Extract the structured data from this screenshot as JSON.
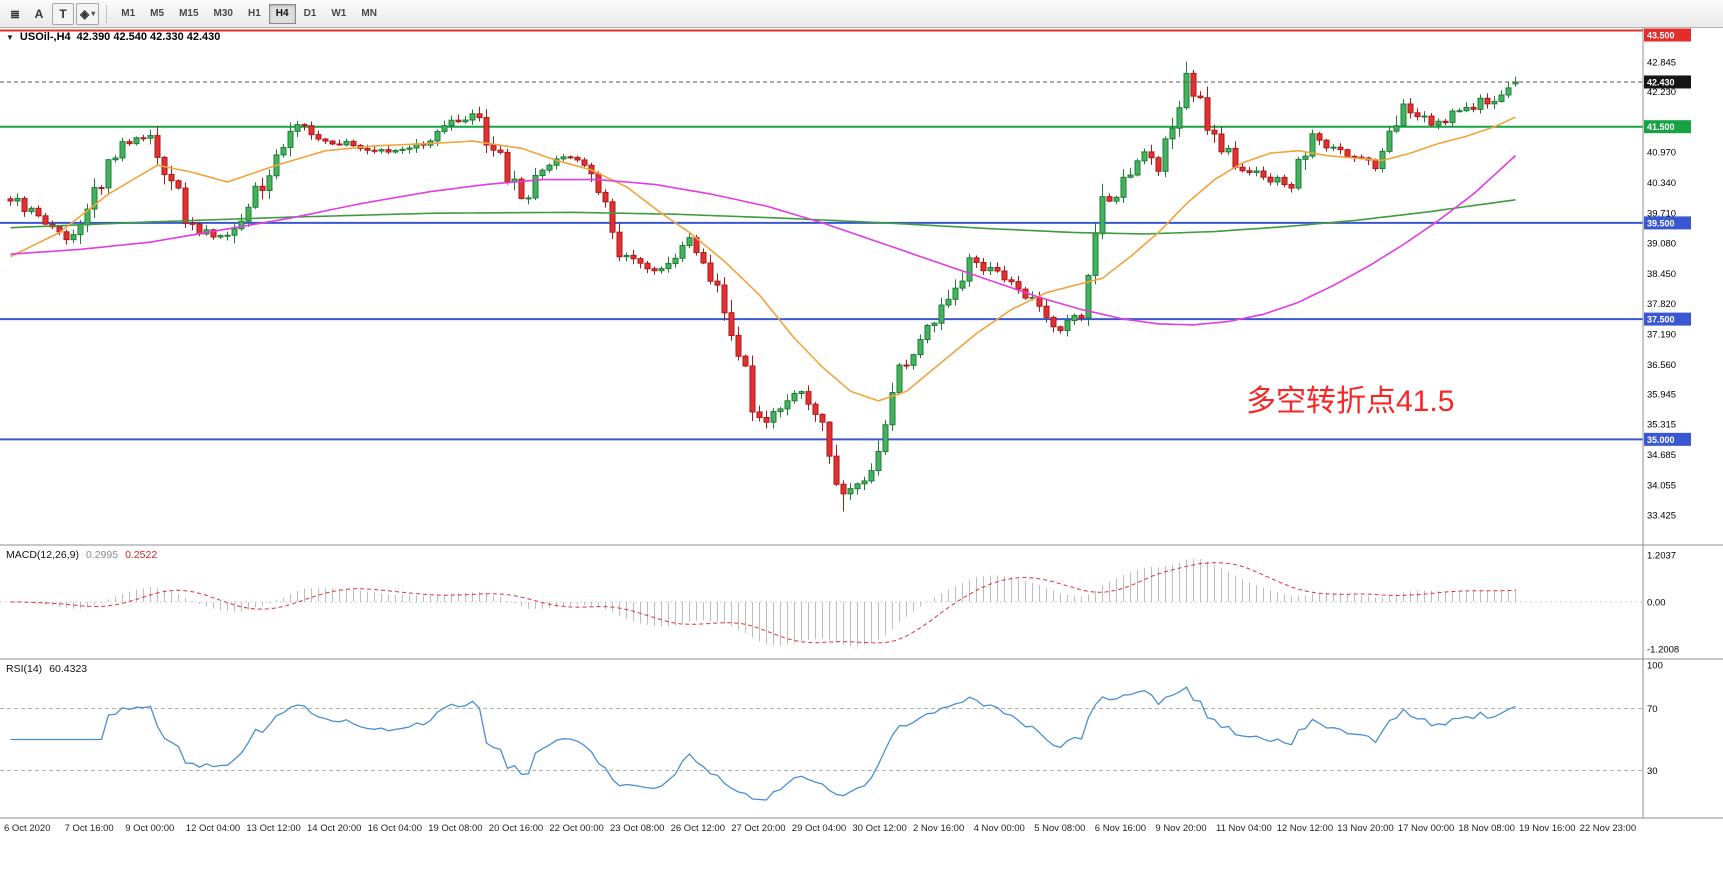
{
  "toolbar": {
    "tools": [
      {
        "name": "indicator-list-icon",
        "glyph": "≣",
        "boxed": false
      },
      {
        "name": "text-tool-icon",
        "glyph": "A",
        "boxed": false
      },
      {
        "name": "label-tool-icon",
        "glyph": "T",
        "boxed": true
      },
      {
        "name": "shapes-tool-icon",
        "glyph": "◈",
        "caret": "▾",
        "boxed": true
      }
    ],
    "timeframes": [
      "M1",
      "M5",
      "M15",
      "M30",
      "H1",
      "H4",
      "D1",
      "W1",
      "MN"
    ],
    "active_timeframe": "H4"
  },
  "header": {
    "dropdown_glyph": "▼",
    "symbol": "USOil-,H4",
    "ohlc": "42.390 42.540 42.330 42.430"
  },
  "panels": {
    "macd": {
      "title": "MACD(12,26,9)",
      "value_main": "0.2995",
      "value_signal": "0.2522"
    },
    "rsi": {
      "title": "RSI(14)",
      "value": "60.4323"
    }
  },
  "chart_data": {
    "type": "candlestick",
    "symbol": "USOil-",
    "timeframe": "H4",
    "quote": {
      "open": 42.39,
      "high": 42.54,
      "low": 42.33,
      "close": 42.43
    },
    "candles": 216,
    "annotation": {
      "text": "多空转折点41.5",
      "color": "#f92525"
    },
    "current_price": {
      "value": 42.43,
      "label": "42.430",
      "badge_color": "#161616"
    },
    "hlines": [
      {
        "price": 43.5,
        "label": "43.500",
        "color": "#e22d2d"
      },
      {
        "price": 41.5,
        "label": "41.500",
        "color": "#17a343"
      },
      {
        "price": 39.5,
        "label": "39.500",
        "color": "#3a57d2"
      },
      {
        "price": 37.5,
        "label": "37.500",
        "color": "#3a57d2"
      },
      {
        "price": 35.0,
        "label": "35.000",
        "color": "#3a57d2"
      }
    ],
    "y_ticks": [
      "42.845",
      "42.230",
      "40.970",
      "40.340",
      "39.710",
      "39.080",
      "38.450",
      "37.820",
      "37.190",
      "36.560",
      "35.945",
      "35.315",
      "34.685",
      "34.055",
      "33.425"
    ],
    "price_anchors": [
      [
        0,
        40.0
      ],
      [
        3,
        39.7
      ],
      [
        8,
        39.15
      ],
      [
        16,
        41.15
      ],
      [
        20,
        41.3
      ],
      [
        26,
        39.35
      ],
      [
        31,
        39.2
      ],
      [
        41,
        41.5
      ],
      [
        47,
        41.15
      ],
      [
        56,
        40.95
      ],
      [
        66,
        41.8
      ],
      [
        73,
        40.0
      ],
      [
        78,
        40.85
      ],
      [
        83,
        40.7
      ],
      [
        87,
        38.95
      ],
      [
        93,
        38.5
      ],
      [
        97,
        39.1
      ],
      [
        102,
        37.8
      ],
      [
        107,
        35.35
      ],
      [
        112,
        36.0
      ],
      [
        115,
        35.6
      ],
      [
        119,
        33.8
      ],
      [
        123,
        34.3
      ],
      [
        127,
        36.4
      ],
      [
        132,
        37.4
      ],
      [
        137,
        38.7
      ],
      [
        142,
        38.35
      ],
      [
        147,
        37.8
      ],
      [
        150,
        37.3
      ],
      [
        153,
        37.6
      ],
      [
        156,
        39.8
      ],
      [
        159,
        40.3
      ],
      [
        162,
        41.0
      ],
      [
        164,
        40.45
      ],
      [
        168,
        42.6
      ],
      [
        172,
        41.3
      ],
      [
        176,
        40.6
      ],
      [
        179,
        40.45
      ],
      [
        183,
        40.3
      ],
      [
        186,
        41.25
      ],
      [
        191,
        40.9
      ],
      [
        195,
        40.7
      ],
      [
        199,
        41.9
      ],
      [
        203,
        41.55
      ],
      [
        208,
        41.9
      ],
      [
        212,
        42.1
      ],
      [
        215,
        42.43
      ]
    ],
    "ma_orange": [
      [
        0,
        38.8
      ],
      [
        7,
        39.3
      ],
      [
        14,
        40.1
      ],
      [
        21,
        40.7
      ],
      [
        26,
        40.55
      ],
      [
        31,
        40.35
      ],
      [
        38,
        40.7
      ],
      [
        45,
        41.0
      ],
      [
        52,
        41.1
      ],
      [
        60,
        41.15
      ],
      [
        66,
        41.2
      ],
      [
        73,
        41.05
      ],
      [
        78,
        40.8
      ],
      [
        83,
        40.6
      ],
      [
        88,
        40.25
      ],
      [
        93,
        39.7
      ],
      [
        97,
        39.3
      ],
      [
        102,
        38.7
      ],
      [
        107,
        38.0
      ],
      [
        112,
        37.1
      ],
      [
        116,
        36.5
      ],
      [
        120,
        36.0
      ],
      [
        124,
        35.8
      ],
      [
        128,
        36.0
      ],
      [
        133,
        36.6
      ],
      [
        138,
        37.2
      ],
      [
        143,
        37.7
      ],
      [
        148,
        38.05
      ],
      [
        152,
        38.2
      ],
      [
        156,
        38.35
      ],
      [
        160,
        38.8
      ],
      [
        164,
        39.3
      ],
      [
        168,
        39.9
      ],
      [
        172,
        40.4
      ],
      [
        176,
        40.75
      ],
      [
        180,
        40.95
      ],
      [
        184,
        41.0
      ],
      [
        188,
        40.9
      ],
      [
        192,
        40.85
      ],
      [
        196,
        40.8
      ],
      [
        200,
        40.95
      ],
      [
        204,
        41.15
      ],
      [
        208,
        41.3
      ],
      [
        212,
        41.5
      ],
      [
        215,
        41.7
      ]
    ],
    "ma_magenta": [
      [
        0,
        38.85
      ],
      [
        10,
        38.95
      ],
      [
        20,
        39.1
      ],
      [
        30,
        39.35
      ],
      [
        40,
        39.6
      ],
      [
        50,
        39.9
      ],
      [
        60,
        40.15
      ],
      [
        68,
        40.3
      ],
      [
        76,
        40.4
      ],
      [
        84,
        40.4
      ],
      [
        92,
        40.3
      ],
      [
        100,
        40.1
      ],
      [
        108,
        39.85
      ],
      [
        116,
        39.5
      ],
      [
        124,
        39.1
      ],
      [
        132,
        38.7
      ],
      [
        140,
        38.3
      ],
      [
        147,
        37.95
      ],
      [
        153,
        37.7
      ],
      [
        159,
        37.5
      ],
      [
        164,
        37.4
      ],
      [
        169,
        37.38
      ],
      [
        174,
        37.45
      ],
      [
        179,
        37.6
      ],
      [
        184,
        37.85
      ],
      [
        189,
        38.2
      ],
      [
        194,
        38.6
      ],
      [
        199,
        39.05
      ],
      [
        204,
        39.55
      ],
      [
        209,
        40.1
      ],
      [
        212,
        40.5
      ],
      [
        215,
        40.9
      ]
    ],
    "ma_green": [
      [
        0,
        39.4
      ],
      [
        20,
        39.52
      ],
      [
        40,
        39.62
      ],
      [
        60,
        39.7
      ],
      [
        80,
        39.72
      ],
      [
        95,
        39.68
      ],
      [
        110,
        39.6
      ],
      [
        125,
        39.5
      ],
      [
        140,
        39.38
      ],
      [
        152,
        39.3
      ],
      [
        162,
        39.27
      ],
      [
        172,
        39.32
      ],
      [
        182,
        39.42
      ],
      [
        192,
        39.55
      ],
      [
        202,
        39.72
      ],
      [
        210,
        39.88
      ],
      [
        215,
        39.98
      ]
    ],
    "indicators": [
      {
        "type": "macd",
        "title": "MACD(12,26,9)",
        "main": 0.2995,
        "signal": 0.2522,
        "scale_ticks": [
          {
            "label": "1.2037",
            "value": 1.2037
          },
          {
            "label": "0.00",
            "value": 0
          },
          {
            "label": "-1.2008",
            "value": -1.2008
          }
        ]
      },
      {
        "type": "rsi",
        "title": "RSI(14)",
        "value": 60.4323,
        "levels": [
          70,
          30
        ],
        "scale_ticks": [
          {
            "label": "100",
            "value": 100
          },
          {
            "label": "70",
            "value": 70
          },
          {
            "label": "30",
            "value": 30
          }
        ]
      }
    ],
    "x_labels": [
      "6 Oct 2020",
      "7 Oct 16:00",
      "9 Oct 00:00",
      "12 Oct 04:00",
      "13 Oct 12:00",
      "14 Oct 20:00",
      "16 Oct 04:00",
      "19 Oct 08:00",
      "20 Oct 16:00",
      "22 Oct 00:00",
      "23 Oct 08:00",
      "26 Oct 12:00",
      "27 Oct 20:00",
      "29 Oct 04:00",
      "30 Oct 12:00",
      "2 Nov 16:00",
      "4 Nov 00:00",
      "5 Nov 08:00",
      "6 Nov 16:00",
      "9 Nov 20:00",
      "11 Nov 04:00",
      "12 Nov 12:00",
      "13 Nov 20:00",
      "17 Nov 00:00",
      "18 Nov 08:00",
      "19 Nov 16:00",
      "22 Nov 23:00"
    ],
    "colors": {
      "bull_fill": "#43b35d",
      "bull_stroke": "#1d7c36",
      "bear_fill": "#e03232",
      "bear_stroke": "#b01616",
      "ma_orange": "#f2a33c",
      "ma_magenta": "#e23ce2",
      "ma_green": "#3f9b3f",
      "macd_hist": "#bdbdbd",
      "macd_signal": "#e43030",
      "rsi_line": "#4a8fd4"
    }
  }
}
